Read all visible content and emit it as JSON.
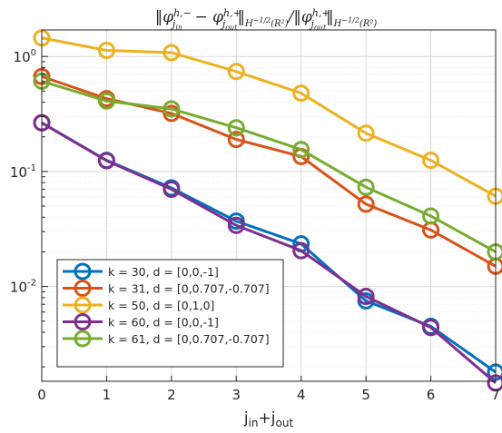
{
  "chart_data": {
    "type": "line",
    "title": "||φ^{h,−}_{j_in} − φ^{h,+}_{j_out}||_{H^{−1/2}(R²)} / ||φ^{h,+}_{j_out}||_{H^{−1/2}(R²)}",
    "xlabel": "j_in+j_out",
    "ylabel": "",
    "xlim": [
      0,
      7
    ],
    "ylim": [
      0.0015,
      1.7
    ],
    "yscale": "log",
    "grid": true,
    "legend_position": "bottom-left",
    "x_ticks": [
      "0",
      "1",
      "2",
      "3",
      "4",
      "5",
      "6",
      "7"
    ],
    "y_ticks": [
      {
        "value": 1,
        "base": "10",
        "exp": "0"
      },
      {
        "value": 0.1,
        "base": "10",
        "exp": "-1"
      },
      {
        "value": 0.01,
        "base": "10",
        "exp": "-2"
      }
    ],
    "x": [
      0,
      1,
      2,
      3,
      4,
      5,
      6,
      7
    ],
    "series": [
      {
        "name": "k = 30, d = [0,0,-1]",
        "color": "#0072BD",
        "values": [
          0.265,
          0.125,
          0.072,
          0.037,
          0.0235,
          0.0075,
          0.0045,
          0.0018
        ]
      },
      {
        "name": "k = 31, d = [0,0.707,-0.707]",
        "color": "#D95319",
        "values": [
          0.67,
          0.43,
          0.32,
          0.19,
          0.135,
          0.052,
          0.031,
          0.015
        ]
      },
      {
        "name": "k = 50, d = [0,1,0]",
        "color": "#EDB120",
        "values": [
          1.45,
          1.13,
          1.08,
          0.74,
          0.48,
          0.215,
          0.125,
          0.061
        ]
      },
      {
        "name": "k = 60, d = [0,0,-1]",
        "color": "#7E2F8E",
        "values": [
          0.265,
          0.124,
          0.07,
          0.034,
          0.0205,
          0.0082,
          0.0044,
          0.00145
        ]
      },
      {
        "name": "k = 61, d = [0,0.707,-0.707]",
        "color": "#77AC30",
        "values": [
          0.61,
          0.41,
          0.35,
          0.24,
          0.155,
          0.073,
          0.041,
          0.02
        ]
      }
    ]
  }
}
